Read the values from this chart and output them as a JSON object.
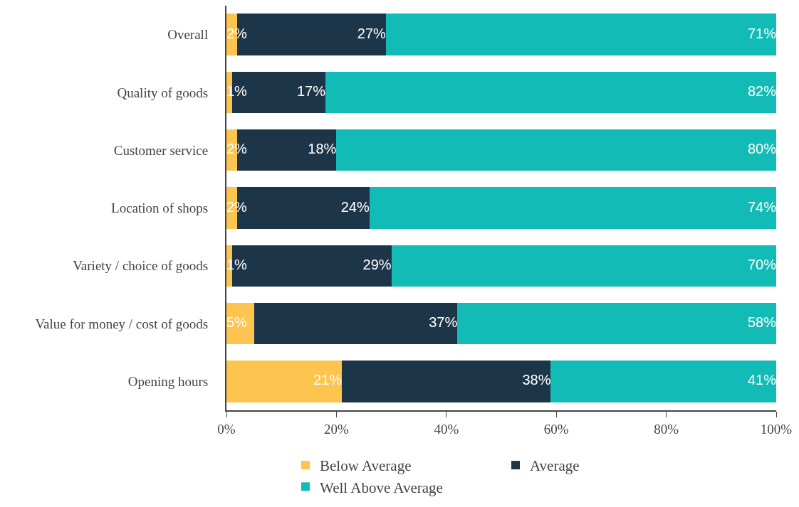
{
  "chart_data": {
    "type": "bar",
    "orientation": "horizontal",
    "stacked": true,
    "categories": [
      "Overall",
      "Quality of goods",
      "Customer service",
      "Location of shops",
      "Variety / choice of goods",
      "Value for money / cost of goods",
      "Opening hours"
    ],
    "series": [
      {
        "name": "Below Average",
        "color": "#fdc44f",
        "values": [
          2,
          1,
          2,
          2,
          1,
          5,
          21
        ],
        "value_labels": [
          "2%",
          "1%",
          "2%",
          "2%",
          "1%",
          "5%",
          "21%"
        ]
      },
      {
        "name": "Average",
        "color": "#1d3549",
        "values": [
          27,
          17,
          18,
          24,
          29,
          37,
          38
        ],
        "value_labels": [
          "27%",
          "17%",
          "18%",
          "24%",
          "29%",
          "37%",
          "38%"
        ]
      },
      {
        "name": "Well Above Average",
        "color": "#13bbb6",
        "values": [
          71,
          82,
          80,
          74,
          70,
          58,
          41
        ],
        "value_labels": [
          "71%",
          "82%",
          "80%",
          "74%",
          "70%",
          "58%",
          "41%"
        ]
      }
    ],
    "xlim": [
      0,
      100
    ],
    "xticks": [
      {
        "value": 0,
        "label": "0%"
      },
      {
        "value": 20,
        "label": "20%"
      },
      {
        "value": 40,
        "label": "40%"
      },
      {
        "value": 60,
        "label": "60%"
      },
      {
        "value": 80,
        "label": "80%"
      },
      {
        "value": 100,
        "label": "100%"
      }
    ],
    "legend": "bottom"
  }
}
